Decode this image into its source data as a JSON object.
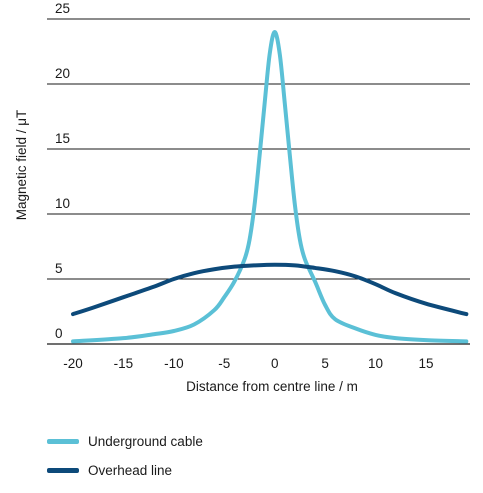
{
  "chart_data": {
    "type": "line",
    "xlabel": "Distance from centre line / m",
    "ylabel": "Magnetic field / μT",
    "xlim": [
      -20,
      19
    ],
    "ylim": [
      0,
      25
    ],
    "x_ticks": [
      -20,
      -15,
      -10,
      -5,
      0,
      5,
      10,
      15
    ],
    "y_ticks": [
      0,
      5,
      10,
      15,
      20,
      25
    ],
    "grid": "horizontal",
    "legend_position": "bottom-left",
    "series": [
      {
        "name": "Underground cable",
        "color": "#5bc0d6",
        "x": [
          -20,
          -15,
          -12,
          -10,
          -8,
          -6,
          -5,
          -4,
          -3,
          -2.5,
          -2,
          -1.5,
          -1,
          -0.5,
          0,
          0.5,
          1,
          1.5,
          2,
          2.5,
          3,
          4,
          5,
          6,
          8,
          10,
          12,
          15,
          19
        ],
        "y": [
          0.2,
          0.45,
          0.75,
          1.0,
          1.5,
          2.6,
          3.6,
          4.8,
          6.5,
          8.0,
          10.7,
          14.5,
          18.5,
          22.3,
          24.0,
          22.3,
          18.5,
          14.5,
          10.7,
          8.0,
          6.5,
          4.8,
          3.0,
          1.9,
          1.2,
          0.7,
          0.45,
          0.3,
          0.2
        ]
      },
      {
        "name": "Overhead line",
        "color": "#0d4a7a",
        "x": [
          -20,
          -18,
          -15,
          -12,
          -10,
          -8,
          -6,
          -4,
          -2,
          0,
          2,
          4,
          6,
          8,
          10,
          12,
          15,
          19
        ],
        "y": [
          2.3,
          2.8,
          3.6,
          4.4,
          5.0,
          5.45,
          5.75,
          5.95,
          6.05,
          6.1,
          6.05,
          5.85,
          5.6,
          5.2,
          4.6,
          3.9,
          3.1,
          2.3
        ]
      }
    ]
  }
}
